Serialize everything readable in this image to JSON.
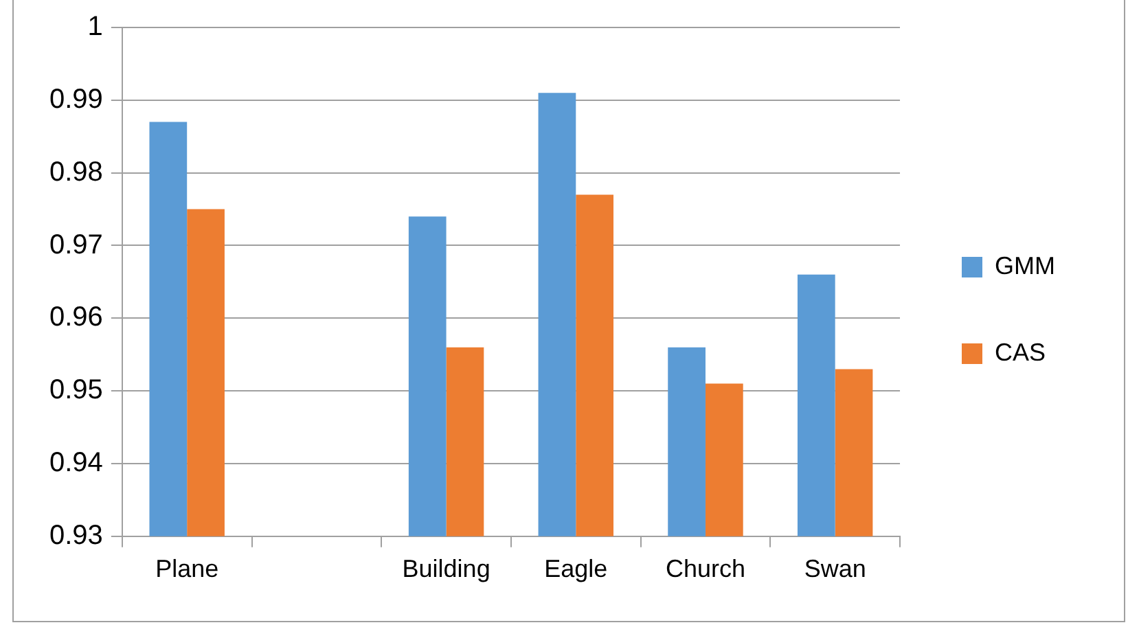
{
  "chart_data": {
    "type": "bar",
    "categories": [
      "Plane",
      null,
      "Building",
      "Eagle",
      "Church",
      "Swan"
    ],
    "series": [
      {
        "name": "GMM",
        "color": "#5b9bd5",
        "values": [
          0.987,
          null,
          0.974,
          0.991,
          0.956,
          0.966
        ]
      },
      {
        "name": "CAS",
        "color": "#ed7d31",
        "values": [
          0.975,
          null,
          0.956,
          0.977,
          0.951,
          0.953
        ]
      }
    ],
    "ylim": [
      0.93,
      1
    ],
    "yticks": [
      0.93,
      0.94,
      0.95,
      0.96,
      0.97,
      0.98,
      0.99,
      1
    ],
    "grid": "y",
    "legend": "right"
  }
}
